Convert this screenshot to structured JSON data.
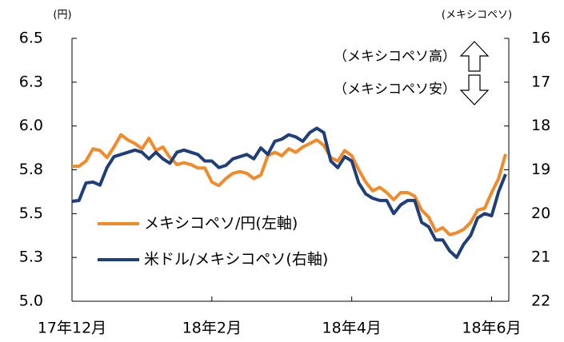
{
  "chart_data": {
    "type": "line",
    "ylabel": "(円)",
    "y2label": "(メキシコペソ)",
    "annotations": [
      "（メキシコペソ高）",
      "（メキシコペソ安）"
    ],
    "categories": [
      "17年12月",
      null,
      null,
      null,
      null,
      null,
      null,
      null,
      null,
      null,
      null,
      null,
      null,
      null,
      null,
      null,
      null,
      null,
      null,
      null,
      "18年2月",
      null,
      null,
      null,
      null,
      null,
      null,
      null,
      null,
      null,
      null,
      null,
      null,
      null,
      null,
      null,
      null,
      null,
      null,
      null,
      "18年4月",
      null,
      null,
      null,
      null,
      null,
      null,
      null,
      null,
      null,
      null,
      null,
      null,
      null,
      null,
      null,
      null,
      null,
      null,
      null,
      "18年6月",
      null,
      null
    ],
    "series": [
      {
        "name": "メキシコペソ/円(左軸)",
        "color": "#f28a2a",
        "axis": "y",
        "values": [
          5.77,
          5.77,
          5.8,
          5.87,
          5.86,
          5.82,
          5.88,
          5.95,
          5.92,
          5.9,
          5.87,
          5.93,
          5.86,
          5.88,
          5.82,
          5.78,
          5.79,
          5.78,
          5.76,
          5.76,
          5.68,
          5.66,
          5.7,
          5.73,
          5.74,
          5.73,
          5.7,
          5.72,
          5.83,
          5.85,
          5.83,
          5.87,
          5.85,
          5.88,
          5.9,
          5.92,
          5.89,
          5.82,
          5.8,
          5.86,
          5.83,
          5.75,
          5.68,
          5.63,
          5.65,
          5.62,
          5.58,
          5.62,
          5.62,
          5.6,
          5.52,
          5.48,
          5.4,
          5.42,
          5.38,
          5.39,
          5.41,
          5.45,
          5.52,
          5.53,
          5.62,
          5.7,
          5.84
        ]
      },
      {
        "name": "米ドル/メキシコペソ(右軸)",
        "color": "#1f3f7a",
        "axis": "y2",
        "values": [
          19.72,
          19.7,
          19.3,
          19.28,
          19.35,
          18.95,
          18.7,
          18.65,
          18.6,
          18.55,
          18.6,
          18.75,
          18.6,
          18.75,
          18.85,
          18.6,
          18.55,
          18.6,
          18.65,
          18.8,
          18.8,
          18.95,
          18.9,
          18.75,
          18.7,
          18.65,
          18.75,
          18.5,
          18.65,
          18.35,
          18.3,
          18.2,
          18.25,
          18.35,
          18.15,
          18.05,
          18.15,
          18.8,
          18.95,
          18.7,
          18.8,
          19.3,
          19.55,
          19.65,
          19.7,
          19.7,
          20.0,
          19.8,
          19.7,
          19.7,
          20.2,
          20.3,
          20.6,
          20.6,
          20.85,
          21.0,
          20.7,
          20.5,
          20.1,
          20.0,
          20.05,
          19.5,
          19.1
        ]
      }
    ],
    "ylim": [
      5.0,
      6.5
    ],
    "yticks": [
      {
        "value": 5.0,
        "label": "5.0"
      },
      {
        "value": 5.25,
        "label": "5.3"
      },
      {
        "value": 5.5,
        "label": "5.5"
      },
      {
        "value": 5.75,
        "label": "5.8"
      },
      {
        "value": 6.0,
        "label": "6.0"
      },
      {
        "value": 6.25,
        "label": "6.3"
      },
      {
        "value": 6.5,
        "label": "6.5"
      }
    ],
    "y2lim": [
      22,
      16
    ],
    "y2ticks": [
      16,
      17,
      18,
      19,
      20,
      21,
      22
    ],
    "y2_inverted": true,
    "grid": false
  }
}
